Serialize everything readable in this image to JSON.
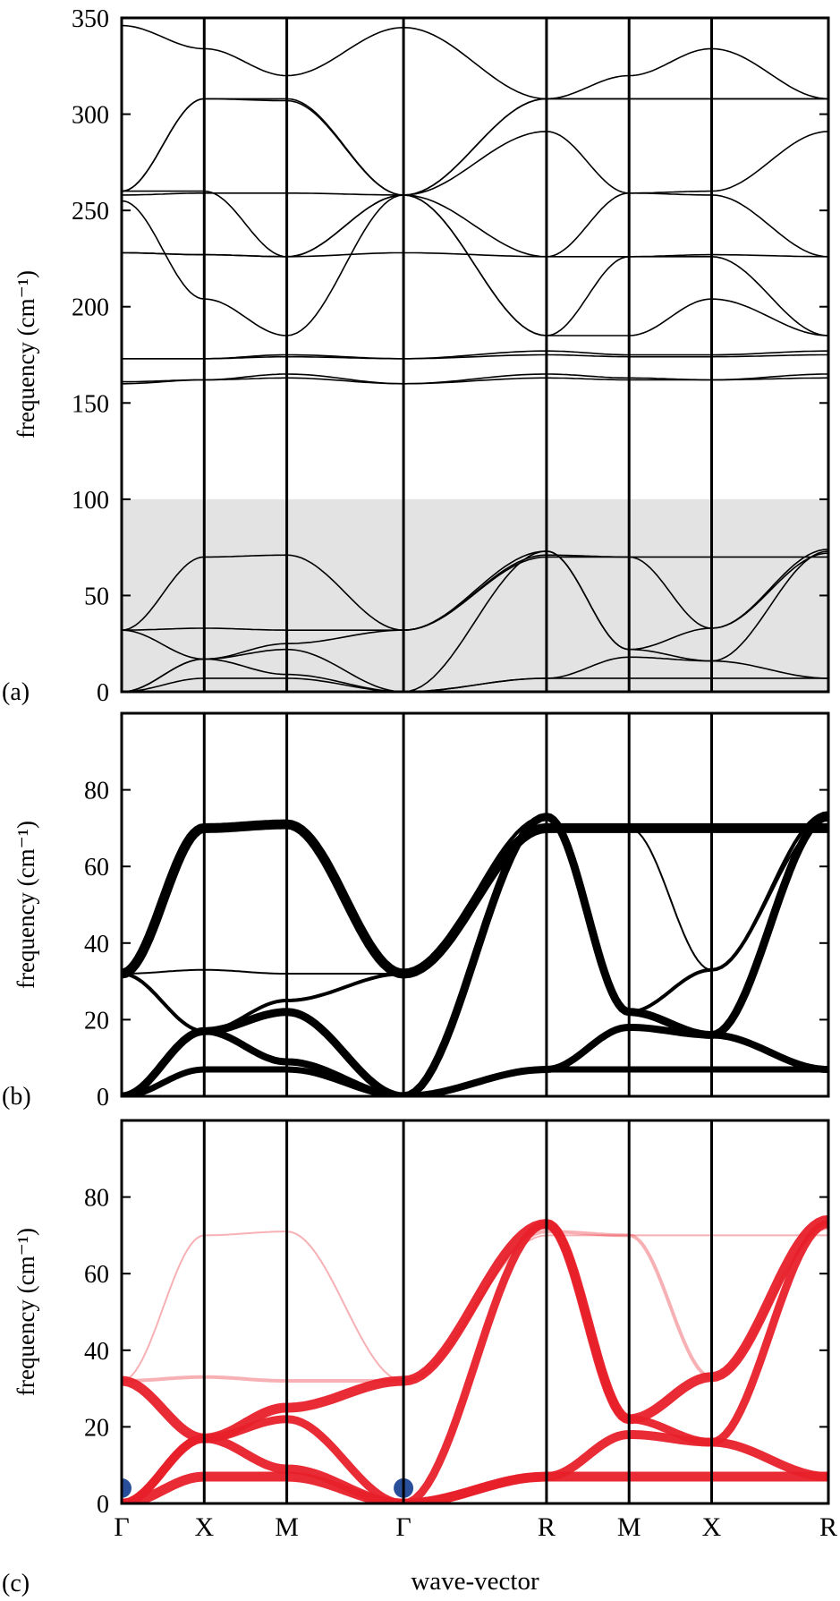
{
  "chart_data": [
    {
      "panel_label": "(a)",
      "type": "line",
      "ylabel": "frequency (cm⁻¹)",
      "ylim": [
        0,
        350
      ],
      "yticks": [
        0,
        50,
        100,
        150,
        200,
        250,
        300,
        350
      ],
      "ytick_labels": [
        "0",
        "50",
        "100",
        "150",
        "200",
        "250",
        "300",
        "350"
      ],
      "shaded_band": [
        0,
        100
      ],
      "segments": [
        "Γ-X",
        "X-M",
        "M-Γ",
        "Γ-R",
        "R-M",
        "M-X",
        "X-R"
      ],
      "series": [
        {
          "values": [
            0,
            7,
            7,
            0,
            7,
            7,
            7,
            7
          ]
        },
        {
          "values": [
            0,
            17,
            9,
            0,
            7,
            18,
            16,
            7
          ]
        },
        {
          "values": [
            0,
            17,
            22,
            0,
            73,
            22,
            16,
            73
          ]
        },
        {
          "values": [
            32,
            17,
            25,
            32,
            73,
            22,
            33,
            74
          ]
        },
        {
          "values": [
            32,
            33,
            32,
            32,
            71,
            70,
            33,
            72
          ]
        },
        {
          "values": [
            32,
            70,
            71,
            32,
            70,
            70,
            70,
            70
          ]
        },
        {
          "values": [
            160,
            162,
            165,
            160,
            165,
            163,
            162,
            165
          ]
        },
        {
          "values": [
            161,
            162,
            163,
            160,
            163,
            162,
            162,
            163
          ]
        },
        {
          "values": [
            173,
            173,
            175,
            173,
            177,
            175,
            175,
            177
          ]
        },
        {
          "values": [
            173,
            173,
            174,
            173,
            175,
            174,
            174,
            175
          ]
        },
        {
          "values": [
            255,
            204,
            185,
            258,
            185,
            185,
            204,
            185
          ]
        },
        {
          "values": [
            228,
            227,
            226,
            258,
            185,
            226,
            226,
            185
          ]
        },
        {
          "values": [
            228,
            227,
            226,
            228,
            226,
            226,
            227,
            226
          ]
        },
        {
          "values": [
            258,
            259,
            259,
            258,
            226,
            259,
            258,
            226
          ]
        },
        {
          "values": [
            260,
            260,
            226,
            258,
            291,
            259,
            260,
            291
          ]
        },
        {
          "values": [
            260,
            308,
            307,
            258,
            308,
            308,
            308,
            308
          ]
        },
        {
          "values": [
            260,
            308,
            308,
            258,
            308,
            308,
            308,
            308
          ]
        },
        {
          "values": [
            346,
            334,
            320,
            345,
            308,
            320,
            334,
            308
          ]
        }
      ]
    },
    {
      "panel_label": "(b)",
      "type": "line",
      "ylabel": "frequency (cm⁻¹)",
      "ylim": [
        0,
        100
      ],
      "yticks": [
        0,
        20,
        40,
        60,
        80
      ],
      "ytick_labels": [
        "0",
        "20",
        "40",
        "60",
        "80"
      ],
      "color": "#000000",
      "series": [
        {
          "values": [
            0,
            7,
            7,
            0,
            7,
            7,
            7,
            7
          ],
          "weight": 7
        },
        {
          "values": [
            0,
            17,
            9,
            0,
            7,
            18,
            16,
            7
          ],
          "weight": 8
        },
        {
          "values": [
            0,
            17,
            22,
            0,
            73,
            22,
            16,
            73
          ],
          "weight": 9
        },
        {
          "values": [
            32,
            17,
            25,
            32,
            73,
            22,
            33,
            74
          ],
          "weight": 4
        },
        {
          "values": [
            32,
            33,
            32,
            32,
            71,
            70,
            33,
            72
          ],
          "weight": 2
        },
        {
          "values": [
            32,
            70,
            71,
            32,
            70,
            70,
            70,
            70
          ],
          "weight": 11
        }
      ]
    },
    {
      "panel_label": "(c)",
      "type": "line",
      "ylabel": "frequency (cm⁻¹)",
      "xlabel": "wave-vector",
      "ylim": [
        0,
        100
      ],
      "yticks": [
        0,
        20,
        40,
        60,
        80
      ],
      "ytick_labels": [
        "0",
        "20",
        "40",
        "60",
        "80"
      ],
      "categories": [
        "Γ",
        "X",
        "M",
        "Γ",
        "R",
        "M",
        "X",
        "R"
      ],
      "color": "#e8202a",
      "series": [
        {
          "values": [
            0,
            7,
            7,
            0,
            7,
            7,
            7,
            7
          ],
          "weight": 11
        },
        {
          "values": [
            0,
            17,
            9,
            0,
            7,
            18,
            16,
            7
          ],
          "weight": 10
        },
        {
          "values": [
            0,
            17,
            22,
            0,
            73,
            22,
            16,
            73
          ],
          "weight": 9
        },
        {
          "values": [
            32,
            17,
            25,
            32,
            73,
            22,
            33,
            74
          ],
          "weight": 11
        },
        {
          "values": [
            32,
            33,
            32,
            32,
            71,
            70,
            33,
            72
          ],
          "weight": 4
        },
        {
          "values": [
            32,
            70,
            71,
            32,
            70,
            70,
            70,
            70
          ],
          "weight": 2
        }
      ],
      "highlights": [
        {
          "x": 0.0,
          "y": 4,
          "color": "#2a4f9a"
        },
        {
          "x": 3.0,
          "y": 4,
          "color": "#2a4f9a"
        }
      ]
    }
  ]
}
